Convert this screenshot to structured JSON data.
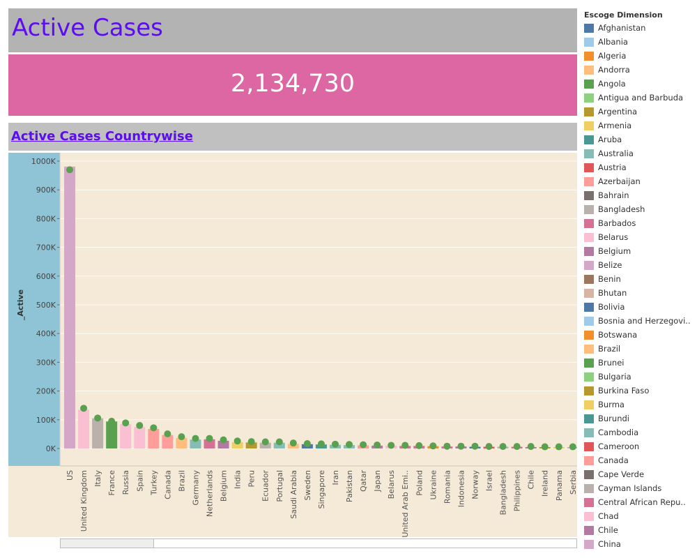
{
  "header": {
    "title": "Active Cases"
  },
  "kpi": {
    "value": "2,134,730"
  },
  "subheader": {
    "title": "Active Cases Countrywise"
  },
  "legend": {
    "title": "Escoge Dimension",
    "items": [
      {
        "label": "Afghanistan",
        "color": "#4e79a7"
      },
      {
        "label": "Albania",
        "color": "#a0cbe8"
      },
      {
        "label": "Algeria",
        "color": "#f28e2b"
      },
      {
        "label": "Andorra",
        "color": "#ffbe7d"
      },
      {
        "label": "Angola",
        "color": "#59a14f"
      },
      {
        "label": "Antigua and Barbuda",
        "color": "#8cd17d"
      },
      {
        "label": "Argentina",
        "color": "#b6992d"
      },
      {
        "label": "Armenia",
        "color": "#f1ce63"
      },
      {
        "label": "Aruba",
        "color": "#499894"
      },
      {
        "label": "Australia",
        "color": "#86bcb6"
      },
      {
        "label": "Austria",
        "color": "#e15759"
      },
      {
        "label": "Azerbaijan",
        "color": "#ff9d9a"
      },
      {
        "label": "Bahrain",
        "color": "#79706e"
      },
      {
        "label": "Bangladesh",
        "color": "#bab0ac"
      },
      {
        "label": "Barbados",
        "color": "#d37295"
      },
      {
        "label": "Belarus",
        "color": "#fabfd2"
      },
      {
        "label": "Belgium",
        "color": "#b07aa1"
      },
      {
        "label": "Belize",
        "color": "#d4a6c8"
      },
      {
        "label": "Benin",
        "color": "#9d7660"
      },
      {
        "label": "Bhutan",
        "color": "#d7b5a6"
      },
      {
        "label": "Bolivia",
        "color": "#4e79a7"
      },
      {
        "label": "Bosnia and Herzegovi..",
        "color": "#a0cbe8"
      },
      {
        "label": "Botswana",
        "color": "#f28e2b"
      },
      {
        "label": "Brazil",
        "color": "#ffbe7d"
      },
      {
        "label": "Brunei",
        "color": "#59a14f"
      },
      {
        "label": "Bulgaria",
        "color": "#8cd17d"
      },
      {
        "label": "Burkina Faso",
        "color": "#b6992d"
      },
      {
        "label": "Burma",
        "color": "#f1ce63"
      },
      {
        "label": "Burundi",
        "color": "#499894"
      },
      {
        "label": "Cambodia",
        "color": "#86bcb6"
      },
      {
        "label": "Cameroon",
        "color": "#e15759"
      },
      {
        "label": "Canada",
        "color": "#ff9d9a"
      },
      {
        "label": "Cape Verde",
        "color": "#79706e"
      },
      {
        "label": "Cayman Islands",
        "color": "#bab0ac"
      },
      {
        "label": "Central African Repu..",
        "color": "#d37295"
      },
      {
        "label": "Chad",
        "color": "#fabfd2"
      },
      {
        "label": "Chile",
        "color": "#b07aa1"
      },
      {
        "label": "China",
        "color": "#d4a6c8"
      }
    ]
  },
  "chart_data": {
    "type": "bar",
    "ylabel": "_Active",
    "ylim": [
      -60000,
      1000000
    ],
    "yticks": [
      0,
      100000,
      200000,
      300000,
      400000,
      500000,
      600000,
      700000,
      800000,
      900000,
      1000000
    ],
    "ytick_labels": [
      "0K",
      "100K",
      "200K",
      "300K",
      "400K",
      "500K",
      "600K",
      "700K",
      "800K",
      "900K",
      "1000K"
    ],
    "grid": true,
    "marker_color": "#59a14f",
    "background_color": "#f5ead8",
    "axis_panel_color": "#8ec4d6",
    "categories": [
      {
        "label": "US",
        "value": 981000,
        "marker": 970000,
        "color": "#d4a6c8"
      },
      {
        "label": "United Kingdom",
        "value": 135000,
        "marker": 140000,
        "color": "#fabfd2"
      },
      {
        "label": "Italy",
        "value": 105000,
        "marker": 106000,
        "color": "#bab0ac"
      },
      {
        "label": "France",
        "value": 94000,
        "marker": 95000,
        "color": "#59a14f"
      },
      {
        "label": "Russia",
        "value": 85000,
        "marker": 89000,
        "color": "#fabfd2"
      },
      {
        "label": "Spain",
        "value": 75000,
        "marker": 80000,
        "color": "#fabfd2"
      },
      {
        "label": "Turkey",
        "value": 68000,
        "marker": 72000,
        "color": "#ff9d9a"
      },
      {
        "label": "Canada",
        "value": 47000,
        "marker": 51000,
        "color": "#ff9d9a"
      },
      {
        "label": "Brazil",
        "value": 37000,
        "marker": 41000,
        "color": "#ffbe7d"
      },
      {
        "label": "Germany",
        "value": 31000,
        "marker": 35000,
        "color": "#86bcb6"
      },
      {
        "label": "Netherlands",
        "value": 32000,
        "marker": 35000,
        "color": "#d37295"
      },
      {
        "label": "Belgium",
        "value": 27000,
        "marker": 30000,
        "color": "#b07aa1"
      },
      {
        "label": "India",
        "value": 22000,
        "marker": 26000,
        "color": "#f1ce63"
      },
      {
        "label": "Peru",
        "value": 21000,
        "marker": 24000,
        "color": "#b6992d"
      },
      {
        "label": "Ecuador",
        "value": 20000,
        "marker": 23000,
        "color": "#bab0ac"
      },
      {
        "label": "Portugal",
        "value": 20000,
        "marker": 23000,
        "color": "#86bcb6"
      },
      {
        "label": "Saudi Arabia",
        "value": 16000,
        "marker": 19000,
        "color": "#ffbe7d"
      },
      {
        "label": "Sweden",
        "value": 15000,
        "marker": 17000,
        "color": "#4e79a7"
      },
      {
        "label": "Singapore",
        "value": 14000,
        "marker": 16000,
        "color": "#499894"
      },
      {
        "label": "Iran",
        "value": 13000,
        "marker": 15000,
        "color": "#86bcb6"
      },
      {
        "label": "Pakistan",
        "value": 12000,
        "marker": 14000,
        "color": "#86bcb6"
      },
      {
        "label": "Qatar",
        "value": 11000,
        "marker": 13000,
        "color": "#ff9d9a"
      },
      {
        "label": "Japan",
        "value": 10000,
        "marker": 12000,
        "color": "#b07aa1"
      },
      {
        "label": "Belarus",
        "value": 10000,
        "marker": 11000,
        "color": "#fabfd2"
      },
      {
        "label": "United Arab Emi..",
        "value": 9000,
        "marker": 11000,
        "color": "#d37295"
      },
      {
        "label": "Poland",
        "value": 9000,
        "marker": 10000,
        "color": "#d37295"
      },
      {
        "label": "Ukraine",
        "value": 8000,
        "marker": 9000,
        "color": "#f28e2b"
      },
      {
        "label": "Romania",
        "value": 7000,
        "marker": 8000,
        "color": "#d37295"
      },
      {
        "label": "Indonesia",
        "value": 7000,
        "marker": 8000,
        "color": "#b07aa1"
      },
      {
        "label": "Norway",
        "value": 6000,
        "marker": 8000,
        "color": "#4e79a7"
      },
      {
        "label": "Israel",
        "value": 6000,
        "marker": 7000,
        "color": "#e15759"
      },
      {
        "label": "Bangladesh",
        "value": 6000,
        "marker": 7000,
        "color": "#bab0ac"
      },
      {
        "label": "Philippines",
        "value": 6000,
        "marker": 7000,
        "color": "#d37295"
      },
      {
        "label": "Chile",
        "value": 5000,
        "marker": 7000,
        "color": "#b07aa1"
      },
      {
        "label": "Ireland",
        "value": 5000,
        "marker": 6000,
        "color": "#b6992d"
      },
      {
        "label": "Panama",
        "value": 5000,
        "marker": 6000,
        "color": "#f1ce63"
      },
      {
        "label": "Serbia",
        "value": 5000,
        "marker": 6000,
        "color": "#d4a6c8"
      }
    ]
  }
}
